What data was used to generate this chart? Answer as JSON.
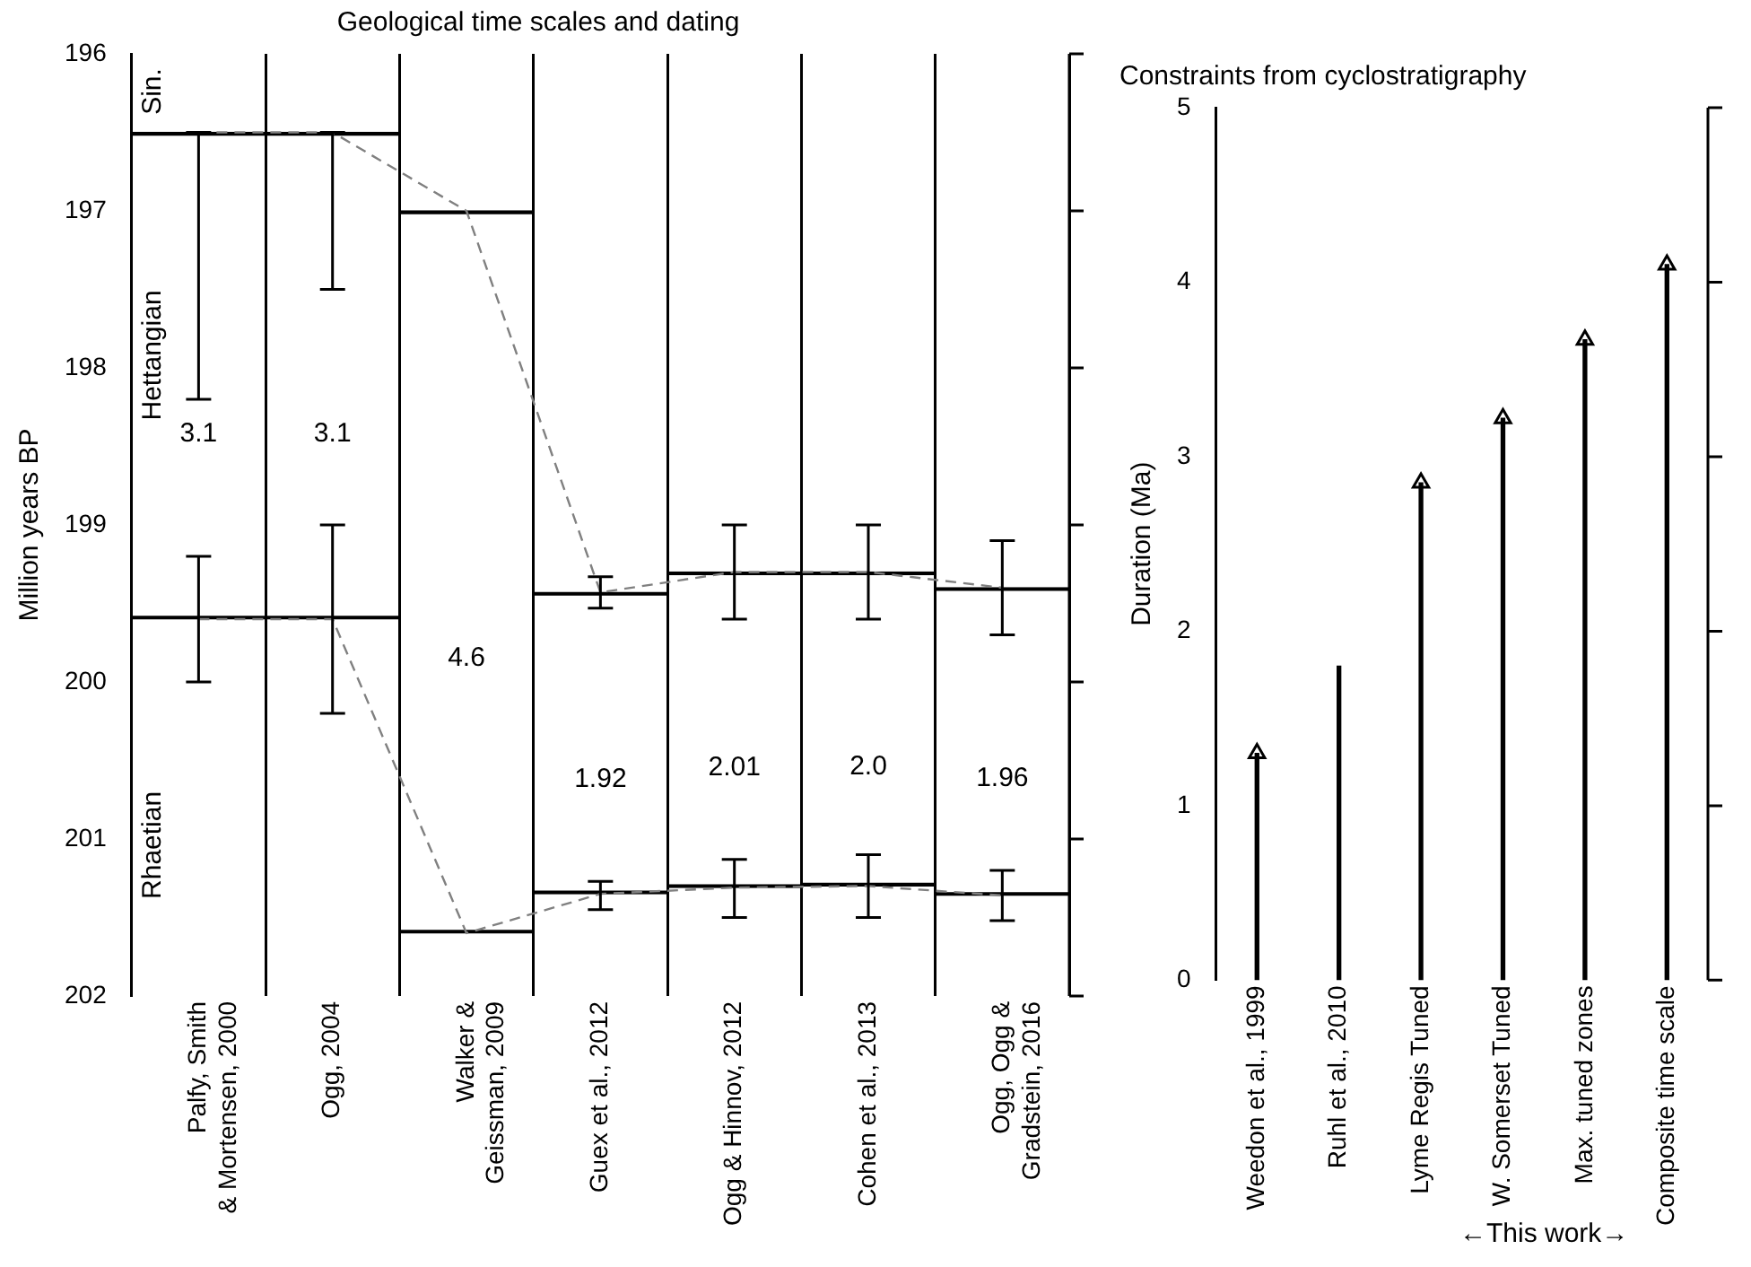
{
  "chart_data": [
    {
      "type": "bar",
      "title": "Geological time scales and dating",
      "ylabel": "Million years BP",
      "categories": [
        "Palfy, Smith\n& Mortensen, 2000",
        "Ogg, 2004",
        "Walker &\nGeissman, 2009",
        "Guex et al., 2012",
        "Ogg & Hinnov, 2012",
        "Cohen et al., 2013",
        "Ogg, Ogg &\nGradstein, 2016"
      ],
      "ylim": [
        202,
        196
      ],
      "yticks": [
        196,
        197,
        198,
        199,
        200,
        201,
        202
      ],
      "grid": "x",
      "legend": false,
      "series": [
        {
          "color": "#000000",
          "base": [
            196.5,
            196.5,
            197.0,
            199.43,
            199.3,
            199.3,
            199.4
          ],
          "values": [
            3.1,
            3.1,
            4.6,
            1.92,
            2.01,
            2.0,
            1.96
          ],
          "value_labels": [
            "3.1",
            "3.1",
            "4.6",
            "1.92",
            "2.01",
            "2.0",
            "1.96"
          ]
        },
        {
          "type": "line",
          "color": "#808080",
          "line_style": "dashed",
          "marker": "none",
          "values": [
            196.5,
            196.5,
            197.0,
            199.43,
            199.3,
            199.3,
            199.4
          ],
          "errors": [
            [
              196.5,
              198.2
            ],
            [
              196.5,
              197.5
            ],
            null,
            [
              199.33,
              199.53
            ],
            [
              199.0,
              199.6
            ],
            [
              199.0,
              199.6
            ],
            [
              199.1,
              199.7
            ]
          ]
        },
        {
          "type": "line",
          "color": "#808080",
          "line_style": "dashed",
          "marker": "none",
          "values": [
            199.6,
            199.6,
            201.6,
            201.35,
            201.31,
            201.3,
            201.36
          ],
          "errors": [
            [
              199.2,
              200.0
            ],
            [
              199.0,
              200.2
            ],
            null,
            [
              201.27,
              201.45
            ],
            [
              201.13,
              201.5
            ],
            [
              201.1,
              201.5
            ],
            [
              201.2,
              201.52
            ]
          ]
        }
      ],
      "annotations": [
        "Sin.",
        "Hettangian",
        "Rhaetian"
      ]
    },
    {
      "type": "bar",
      "title": "Constraints from cyclostratigraphy",
      "ylabel": "Duration (Ma)",
      "categories": [
        "Weedon et al., 1999",
        "Ruhl et al., 2010",
        "Lyme Regis Tuned",
        "W. Somerset Tuned",
        "Max. tuned zones",
        "Composite time scale"
      ],
      "ylim": [
        0,
        5
      ],
      "yticks": [
        0,
        1,
        2,
        3,
        4,
        5
      ],
      "grid": false,
      "legend": false,
      "series": [
        {
          "color": "#000000",
          "values": [
            1.3,
            1.8,
            2.85,
            3.22,
            3.67,
            4.1
          ]
        },
        {
          "type": "scatter",
          "color": "#000000",
          "marker": "triangle",
          "x": [
            "Weedon et al., 1999",
            "Lyme Regis Tuned",
            "W. Somerset Tuned",
            "Max. tuned zones",
            "Composite time scale"
          ],
          "values": [
            1.3,
            2.85,
            3.22,
            3.67,
            4.1
          ]
        }
      ],
      "annotations": [
        "←This work→"
      ]
    }
  ]
}
